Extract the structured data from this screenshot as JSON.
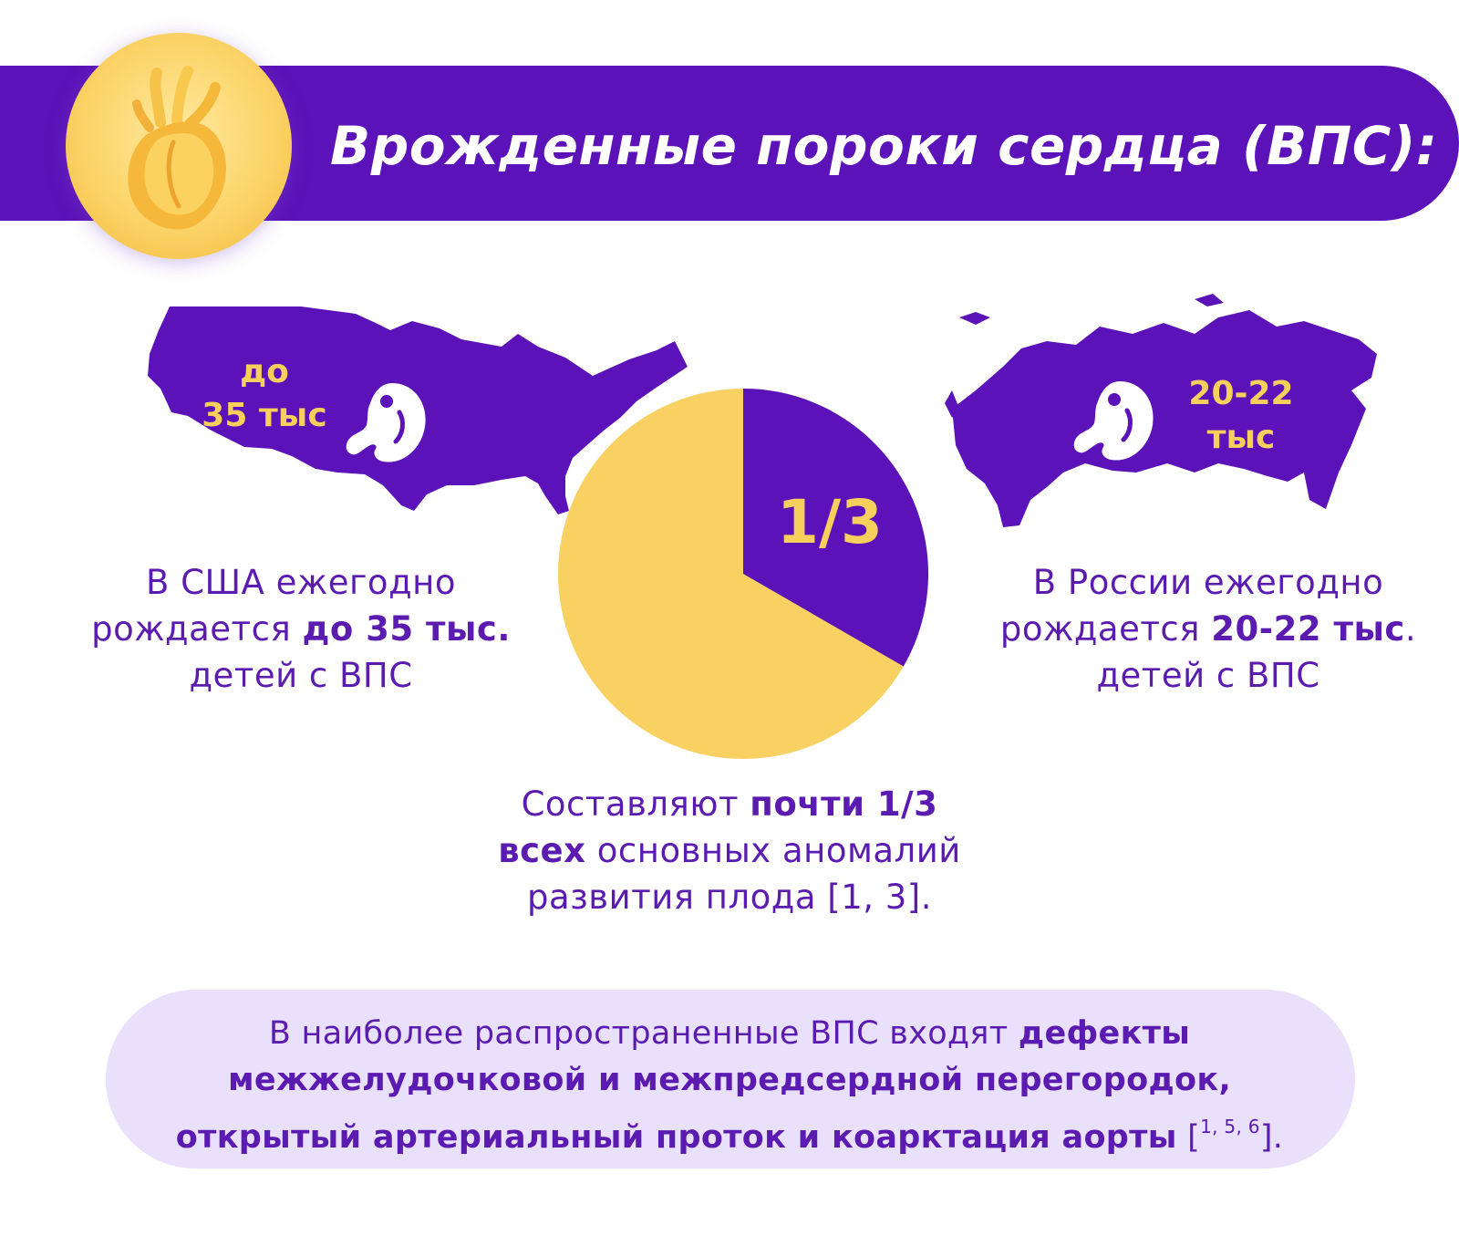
{
  "header": {
    "title": "Врожденные пороки сердца (ВПС):",
    "icon": "heart-icon"
  },
  "usa": {
    "map_label_line1": "до",
    "map_label_line2": "35 тыс",
    "caption_line1": "В США ежегодно",
    "caption_line2_normal": "рождается ",
    "caption_line2_bold": "до 35 тыс.",
    "caption_line3": "детей с ВПС",
    "icon": "fetus-icon"
  },
  "pie": {
    "label": "1/3",
    "fraction": 0.3333,
    "colors": {
      "share": "#5b12b8",
      "rest": "#f9d062"
    }
  },
  "russia": {
    "map_label_line1": "20-22",
    "map_label_line2": "тыс",
    "caption_line1": "В России ежегодно",
    "caption_line2_normal": "рождается ",
    "caption_line2_bold": "20-22 тыс",
    "caption_line2_tail": ".",
    "caption_line3": "детей с ВПС",
    "icon": "fetus-icon"
  },
  "center_caption": {
    "line1_normal": "Составляют ",
    "line1_bold": "почти 1/3",
    "line2_bold": "всех",
    "line2_normal": " основных аномалий",
    "line3": "развития плода [1, 3]."
  },
  "note": {
    "part1": "В наиболее распространенные ВПС входят ",
    "part1_bold": "дефекты",
    "part2_bold": "межжелудочковой и межпредсердной перегородок, открытый артериальный проток и коарктация аорты",
    "ref_open": " [",
    "ref_sup": "1, 5, 6",
    "ref_close": "]."
  },
  "colors": {
    "primary": "#5b12b8",
    "accent": "#f7cf5c",
    "note_bg": "#e9e1fc"
  }
}
